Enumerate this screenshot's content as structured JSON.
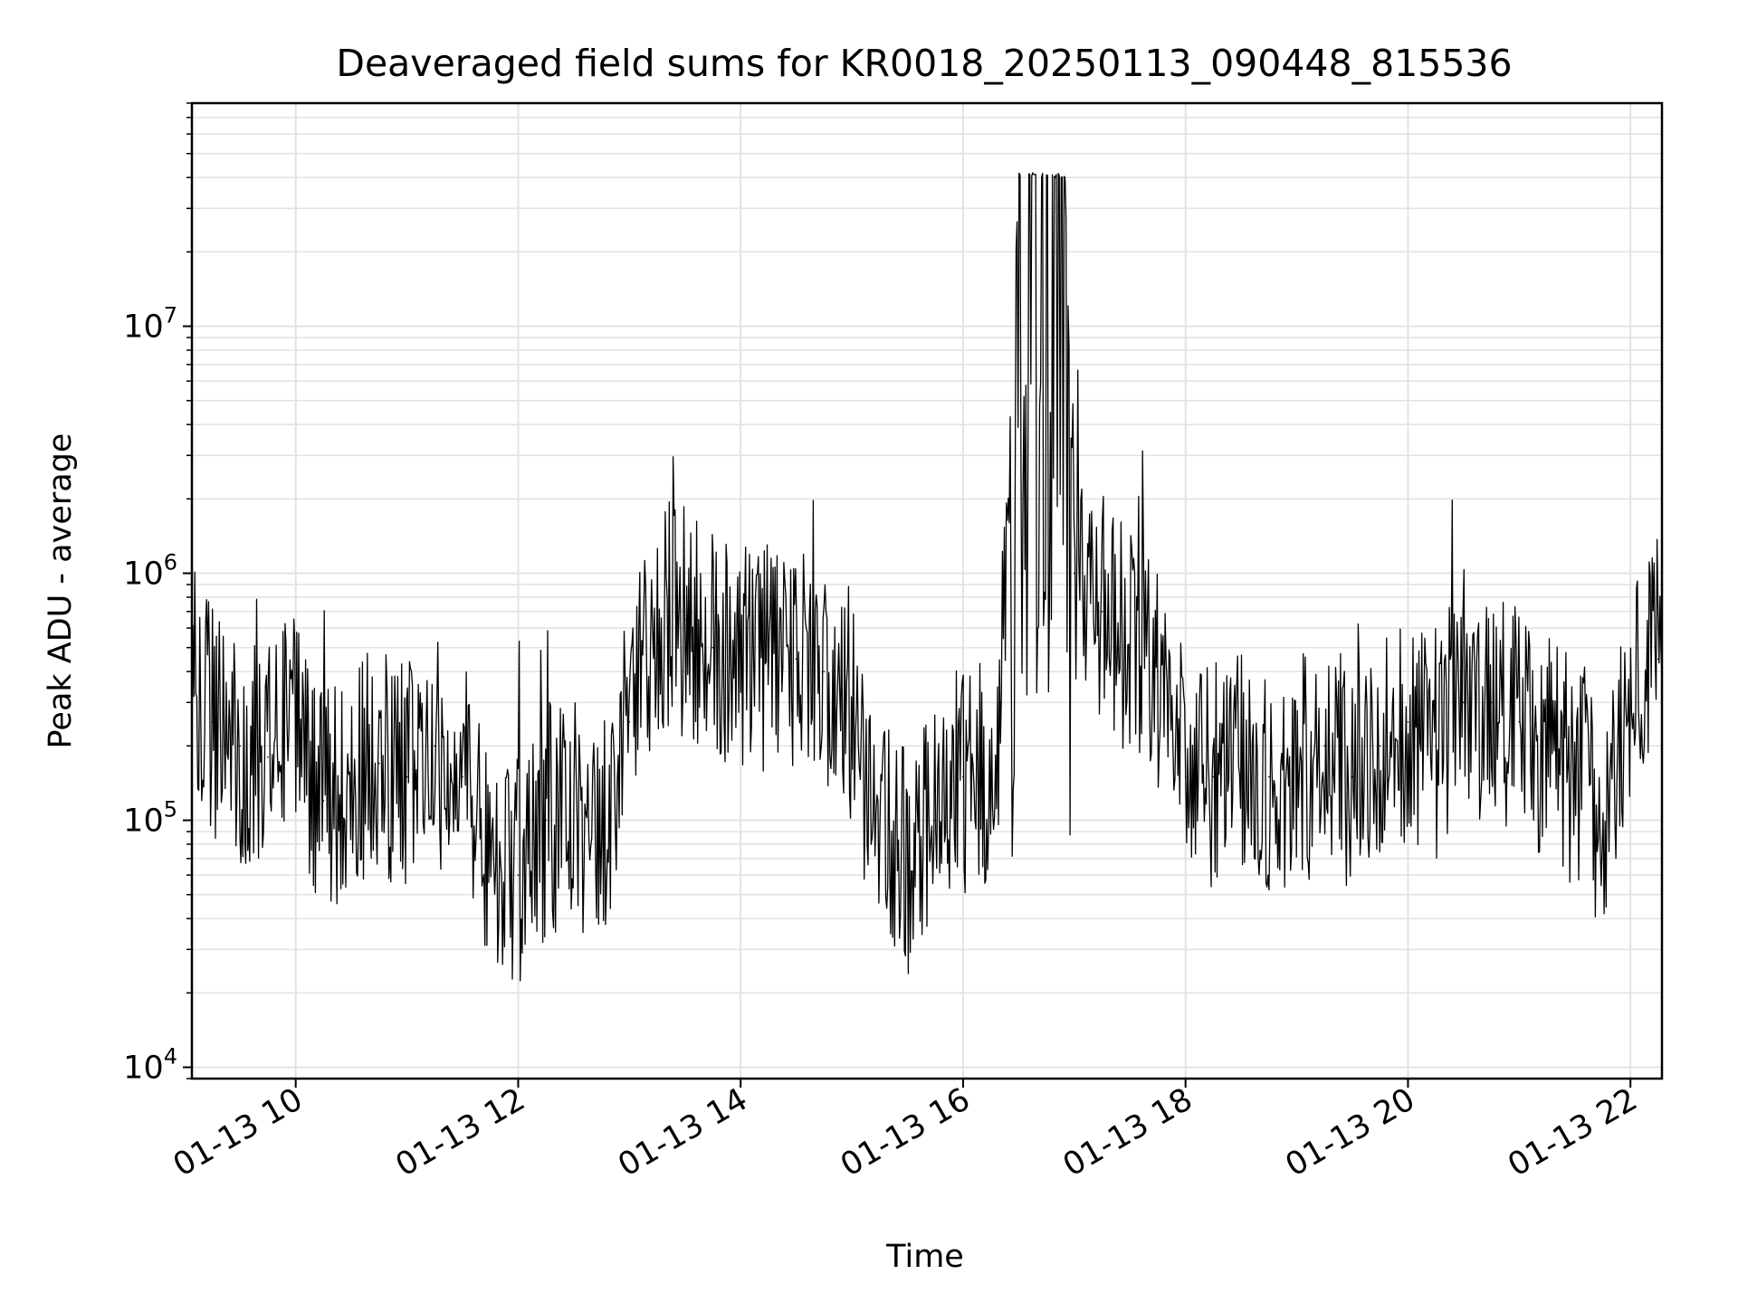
{
  "chart_data": {
    "type": "line",
    "title": "Deaveraged field sums for KR0018_20250113_090448_815536",
    "xlabel": "Time",
    "ylabel": "Peak ADU - average",
    "y_scale": "log",
    "ylim": [
      9000,
      80000000
    ],
    "xlim": [
      "01-13 09:04",
      "01-13 22:17"
    ],
    "grid": true,
    "legend": "none",
    "line_color": "#000000",
    "x_ticks": [
      {
        "label": "01-13 10",
        "time": "01-13 10:00"
      },
      {
        "label": "01-13 12",
        "time": "01-13 12:00"
      },
      {
        "label": "01-13 14",
        "time": "01-13 14:00"
      },
      {
        "label": "01-13 16",
        "time": "01-13 16:00"
      },
      {
        "label": "01-13 18",
        "time": "01-13 18:00"
      },
      {
        "label": "01-13 20",
        "time": "01-13 20:00"
      },
      {
        "label": "01-13 22",
        "time": "01-13 22:00"
      }
    ],
    "y_ticks": [
      {
        "base": "10",
        "exp": "4",
        "value": 10000
      },
      {
        "base": "10",
        "exp": "5",
        "value": 100000
      },
      {
        "base": "10",
        "exp": "6",
        "value": 1000000
      },
      {
        "base": "10",
        "exp": "7",
        "value": 10000000
      }
    ],
    "series": [
      {
        "x": [
          "01-13 09:04",
          "01-13 09:15",
          "01-13 09:30",
          "01-13 09:45",
          "01-13 10:00",
          "01-13 10:15",
          "01-13 10:30",
          "01-13 10:45",
          "01-13 11:00",
          "01-13 11:15",
          "01-13 11:30",
          "01-13 11:45",
          "01-13 12:00",
          "01-13 12:15",
          "01-13 12:30",
          "01-13 12:45",
          "01-13 13:00",
          "01-13 13:15",
          "01-13 13:30",
          "01-13 13:45",
          "01-13 14:00",
          "01-13 14:15",
          "01-13 14:30",
          "01-13 14:45",
          "01-13 15:00",
          "01-13 15:15",
          "01-13 15:30",
          "01-13 15:45",
          "01-13 16:00",
          "01-13 16:15",
          "01-13 16:20",
          "01-13 16:30",
          "01-13 16:45",
          "01-13 16:55",
          "01-13 17:00",
          "01-13 17:15",
          "01-13 17:30",
          "01-13 17:45",
          "01-13 18:00",
          "01-13 18:15",
          "01-13 18:30",
          "01-13 18:45",
          "01-13 19:00",
          "01-13 19:15",
          "01-13 19:30",
          "01-13 19:45",
          "01-13 20:00",
          "01-13 20:15",
          "01-13 20:30",
          "01-13 20:45",
          "01-13 21:00",
          "01-13 21:15",
          "01-13 21:30",
          "01-13 21:45",
          "01-13 22:00",
          "01-13 22:15"
        ],
        "y": [
          400000,
          250000,
          200000,
          180000,
          250000,
          120000,
          150000,
          170000,
          150000,
          200000,
          150000,
          80000,
          60000,
          100000,
          110000,
          80000,
          250000,
          700000,
          650000,
          500000,
          500000,
          450000,
          450000,
          400000,
          300000,
          80000,
          70000,
          100000,
          150000,
          150000,
          300000,
          40000000,
          40000000,
          40000000,
          1000000,
          700000,
          500000,
          400000,
          150000,
          150000,
          200000,
          150000,
          150000,
          200000,
          150000,
          200000,
          250000,
          200000,
          300000,
          300000,
          250000,
          200000,
          150000,
          100000,
          300000,
          450000
        ]
      }
    ]
  }
}
